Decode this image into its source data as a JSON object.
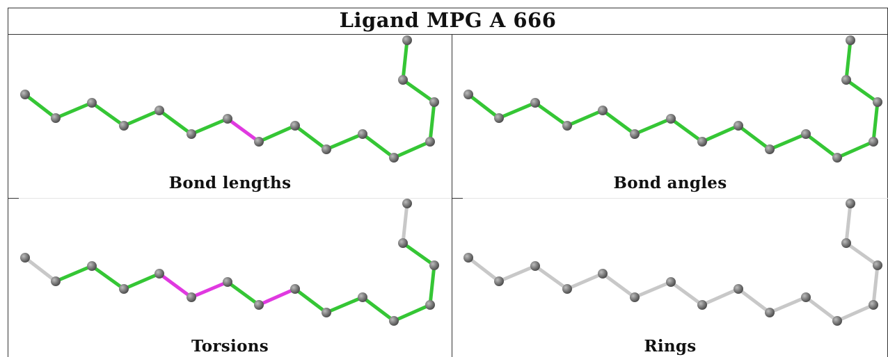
{
  "title": "Ligand MPG A 666",
  "colors": {
    "ok": "#35c635",
    "outlier": "#e039e0",
    "neutral": "#c8c8c8",
    "atom": "#7a7a7a"
  },
  "panels": [
    {
      "id": "bond-lengths",
      "caption": "Bond lengths",
      "bonds": [
        "ok",
        "ok",
        "ok",
        "ok",
        "ok",
        "ok",
        "outlier",
        "ok",
        "ok",
        "ok",
        "ok",
        "ok",
        "ok",
        "ok",
        "ok"
      ]
    },
    {
      "id": "bond-angles",
      "caption": "Bond angles",
      "bonds": [
        "ok",
        "ok",
        "ok",
        "ok",
        "ok",
        "ok",
        "ok",
        "ok",
        "ok",
        "ok",
        "ok",
        "ok",
        "ok",
        "ok",
        "ok"
      ]
    },
    {
      "id": "torsions",
      "caption": "Torsions",
      "bonds": [
        "neutral",
        "ok",
        "ok",
        "ok",
        "outlier",
        "outlier",
        "ok",
        "outlier",
        "ok",
        "ok",
        "ok",
        "ok",
        "ok",
        "ok",
        "neutral"
      ]
    },
    {
      "id": "rings",
      "caption": "Rings",
      "bonds": [
        "neutral",
        "neutral",
        "neutral",
        "neutral",
        "neutral",
        "neutral",
        "neutral",
        "neutral",
        "neutral",
        "neutral",
        "neutral",
        "neutral",
        "neutral",
        "neutral",
        "neutral"
      ]
    }
  ]
}
